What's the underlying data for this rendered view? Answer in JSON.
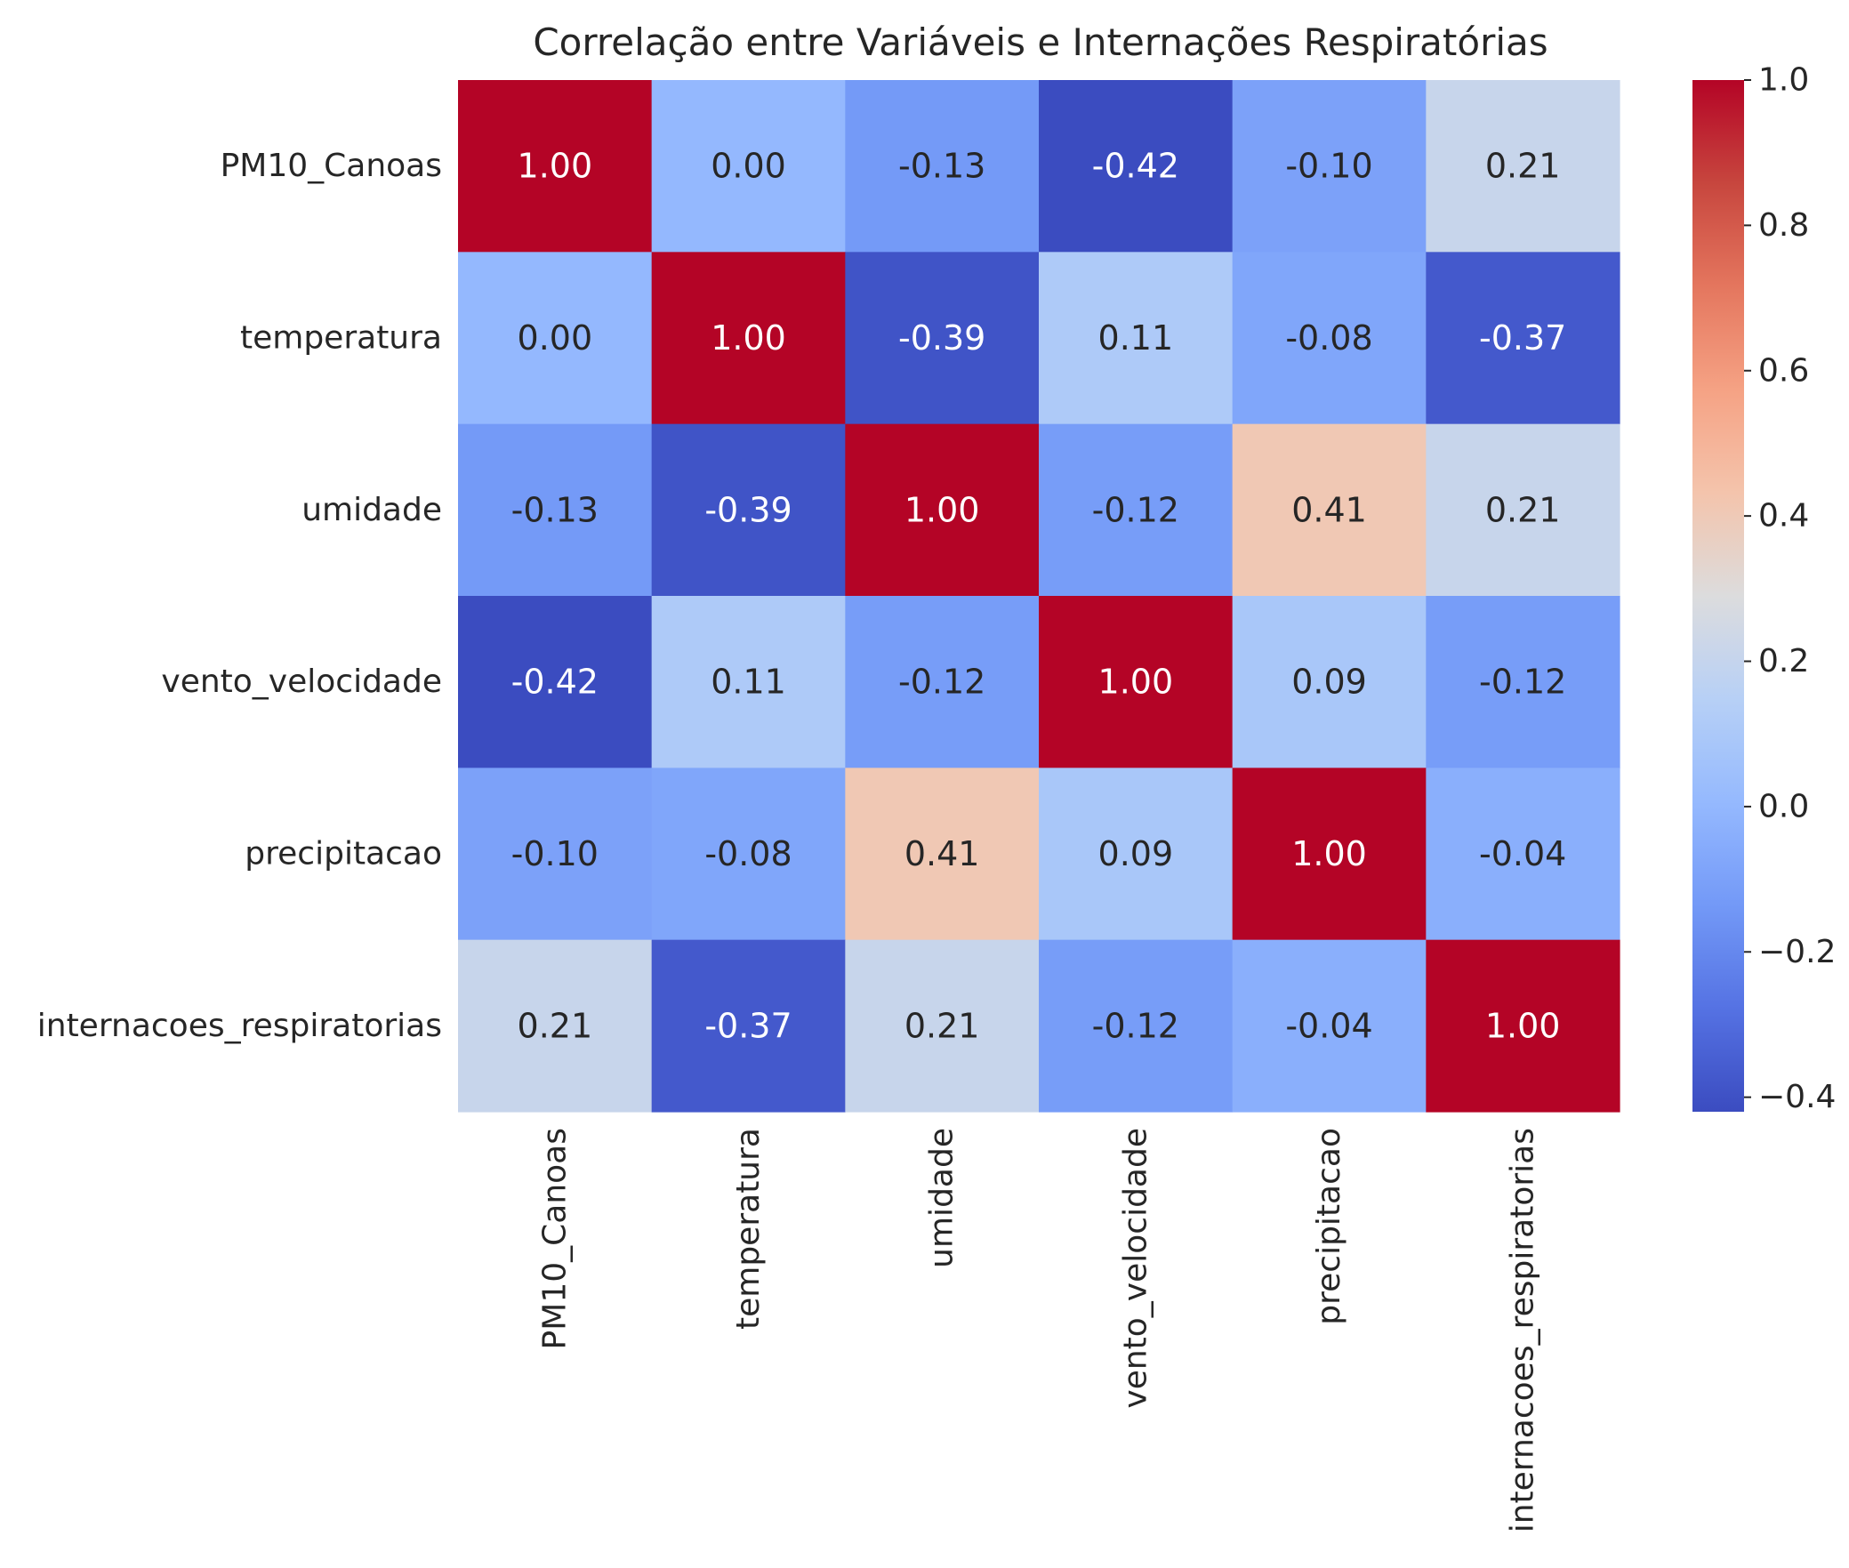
{
  "chart_data": {
    "type": "heatmap",
    "title": "Correlação entre Variáveis e Internações Respiratórias",
    "xlabel": "",
    "ylabel": "",
    "rows": [
      "PM10_Canoas",
      "temperatura",
      "umidade",
      "vento_velocidade",
      "precipitacao",
      "internacoes_respiratorias"
    ],
    "columns": [
      "PM10_Canoas",
      "temperatura",
      "umidade",
      "vento_velocidade",
      "precipitacao",
      "internacoes_respiratorias"
    ],
    "values": [
      [
        1.0,
        0.0,
        -0.13,
        -0.42,
        -0.1,
        0.21
      ],
      [
        0.0,
        1.0,
        -0.39,
        0.11,
        -0.08,
        -0.37
      ],
      [
        -0.13,
        -0.39,
        1.0,
        -0.12,
        0.41,
        0.21
      ],
      [
        -0.42,
        0.11,
        -0.12,
        1.0,
        0.09,
        -0.12
      ],
      [
        -0.1,
        -0.08,
        0.41,
        0.09,
        1.0,
        -0.04
      ],
      [
        0.21,
        -0.37,
        0.21,
        -0.12,
        -0.04,
        1.0
      ]
    ],
    "annotation_format": "0.00",
    "colormap": "coolwarm",
    "colorbar": {
      "vmin": -0.42,
      "vmax": 1.0,
      "ticks": [
        -0.4,
        -0.2,
        0.0,
        0.2,
        0.4,
        0.6,
        0.8,
        1.0
      ],
      "tick_labels": [
        "−0.4",
        "−0.2",
        "0.0",
        "0.2",
        "0.4",
        "0.6",
        "0.8",
        "1.0"
      ],
      "placement": "right"
    },
    "grid": false
  }
}
